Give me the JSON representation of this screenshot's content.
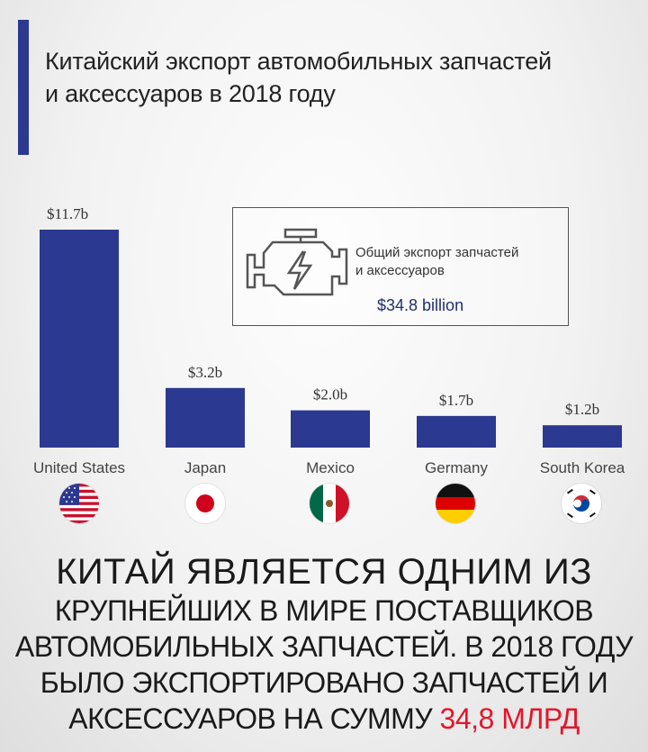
{
  "title": {
    "line1": "Китайский экспорт автомобильных запчастей",
    "line2": "и аксессуаров в 2018 году"
  },
  "info_box": {
    "label_line1": "Общий экспорт запчастей",
    "label_line2": "и аксессуаров",
    "value": "$34.8 billion",
    "icon": "engine-warning-icon"
  },
  "colors": {
    "bar": "#2b3990",
    "title_accent": "#2b3990",
    "highlight": "#e4152a"
  },
  "chart_data": {
    "type": "bar",
    "title": "Китайский экспорт автомобильных запчастей и аксессуаров в 2018 году",
    "categories": [
      "United States",
      "Japan",
      "Mexico",
      "Germany",
      "South Korea"
    ],
    "values": [
      11.7,
      3.2,
      2.0,
      1.7,
      1.2
    ],
    "data_labels": [
      "$11.7b",
      "$3.2b",
      "$2.0b",
      "$1.7b",
      "$1.2b"
    ],
    "unit": "billion USD",
    "ylim": [
      0,
      11.7
    ],
    "grid": false,
    "legend": "none",
    "flags": [
      "us-flag-icon",
      "japan-flag-icon",
      "mexico-flag-icon",
      "germany-flag-icon",
      "south-korea-flag-icon"
    ]
  },
  "headline": {
    "line1": "КИТАЙ ЯВЛЯЕТСЯ ОДНИМ ИЗ",
    "line2": "КРУПНЕЙШИХ В МИРЕ ПОСТАВЩИКОВ",
    "line3": "АВТОМОБИЛЬНЫХ ЗАПЧАСТЕЙ. В 2018 ГОДУ",
    "line4": "БЫЛО ЭКСПОРТИРОВАНО ЗАПЧАСТЕЙ И",
    "line5_prefix": "АКСЕССУАРОВ НА СУММУ ",
    "line5_highlight": "34,8 МЛРД"
  }
}
